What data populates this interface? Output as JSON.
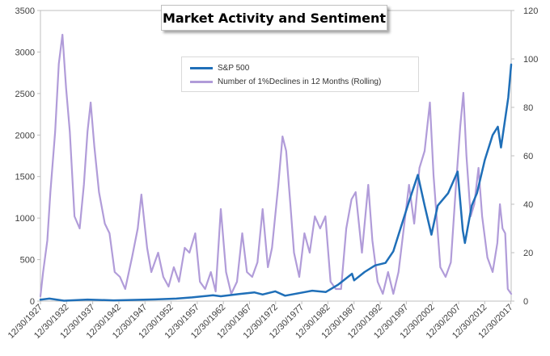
{
  "chart_data": {
    "type": "line",
    "title": "Market Activity and Sentiment",
    "x_tick_labels": [
      "12/30/1927",
      "12/30/1932",
      "12/30/1937",
      "12/30/1942",
      "12/30/1947",
      "12/30/1952",
      "12/30/1957",
      "12/30/1962",
      "12/30/1967",
      "12/30/1972",
      "12/30/1977",
      "12/30/1982",
      "12/30/1987",
      "12/30/1992",
      "12/30/1997",
      "12/30/2002",
      "12/30/2007",
      "12/30/2012",
      "12/30/2017"
    ],
    "y_left": {
      "min": 0,
      "max": 3500,
      "ticks": [
        "0",
        "500",
        "1000",
        "1500",
        "2000",
        "2500",
        "3000",
        "3500"
      ]
    },
    "y_right": {
      "min": 0,
      "max": 120,
      "ticks": [
        "0",
        "20",
        "40",
        "60",
        "80",
        "100",
        "120"
      ]
    },
    "gridlines": false,
    "legend_position": "top-center",
    "series": [
      {
        "name": "S&P 500",
        "axis": "left",
        "color": "#1f6fb8",
        "points": [
          [
            1927.99,
            17
          ],
          [
            1929.7,
            30
          ],
          [
            1932.5,
            5
          ],
          [
            1937,
            18
          ],
          [
            1942,
            9
          ],
          [
            1946,
            15
          ],
          [
            1950,
            20
          ],
          [
            1954,
            30
          ],
          [
            1957,
            45
          ],
          [
            1961,
            70
          ],
          [
            1962.5,
            58
          ],
          [
            1966,
            85
          ],
          [
            1968.9,
            105
          ],
          [
            1970.5,
            80
          ],
          [
            1972.9,
            118
          ],
          [
            1974.8,
            65
          ],
          [
            1980,
            125
          ],
          [
            1982.6,
            110
          ],
          [
            1985,
            200
          ],
          [
            1987.6,
            330
          ],
          [
            1988,
            250
          ],
          [
            1990,
            350
          ],
          [
            1992,
            430
          ],
          [
            1994,
            460
          ],
          [
            1995.5,
            600
          ],
          [
            1997,
            900
          ],
          [
            1998.5,
            1200
          ],
          [
            2000.2,
            1520
          ],
          [
            2001.5,
            1150
          ],
          [
            2002.8,
            800
          ],
          [
            2004,
            1150
          ],
          [
            2006,
            1300
          ],
          [
            2007.8,
            1560
          ],
          [
            2008.8,
            850
          ],
          [
            2009.2,
            700
          ],
          [
            2010.5,
            1150
          ],
          [
            2011.5,
            1300
          ],
          [
            2013,
            1700
          ],
          [
            2014.5,
            2000
          ],
          [
            2015.5,
            2100
          ],
          [
            2016.1,
            1850
          ],
          [
            2016.8,
            2150
          ],
          [
            2017.5,
            2450
          ],
          [
            2018.05,
            2850
          ]
        ]
      },
      {
        "name": "Number of 1%Declines in 12 Months (Rolling)",
        "axis": "right",
        "color": "#b19cd9",
        "points": [
          [
            1927.99,
            2
          ],
          [
            1928.5,
            12
          ],
          [
            1929.3,
            25
          ],
          [
            1929.9,
            45
          ],
          [
            1930.8,
            70
          ],
          [
            1931.5,
            98
          ],
          [
            1932.2,
            110
          ],
          [
            1932.9,
            88
          ],
          [
            1933.6,
            70
          ],
          [
            1934.5,
            35
          ],
          [
            1935.5,
            30
          ],
          [
            1936.3,
            48
          ],
          [
            1937.0,
            70
          ],
          [
            1937.6,
            82
          ],
          [
            1938.3,
            64
          ],
          [
            1939.2,
            45
          ],
          [
            1940.3,
            32
          ],
          [
            1941.2,
            28
          ],
          [
            1942.2,
            12
          ],
          [
            1943.2,
            10
          ],
          [
            1944.2,
            5
          ],
          [
            1945.5,
            18
          ],
          [
            1946.6,
            30
          ],
          [
            1947.3,
            44
          ],
          [
            1948.4,
            22
          ],
          [
            1949.2,
            12
          ],
          [
            1950.5,
            20
          ],
          [
            1951.5,
            10
          ],
          [
            1952.5,
            6
          ],
          [
            1953.5,
            14
          ],
          [
            1954.5,
            8
          ],
          [
            1955.6,
            22
          ],
          [
            1956.5,
            20
          ],
          [
            1957.6,
            28
          ],
          [
            1958.5,
            8
          ],
          [
            1959.5,
            5
          ],
          [
            1960.6,
            12
          ],
          [
            1961.5,
            4
          ],
          [
            1962.5,
            38
          ],
          [
            1963.5,
            12
          ],
          [
            1964.5,
            3
          ],
          [
            1965.6,
            8
          ],
          [
            1966.6,
            28
          ],
          [
            1967.5,
            12
          ],
          [
            1968.5,
            10
          ],
          [
            1969.5,
            16
          ],
          [
            1970.5,
            38
          ],
          [
            1971.5,
            14
          ],
          [
            1972.3,
            22
          ],
          [
            1973.5,
            48
          ],
          [
            1974.3,
            68
          ],
          [
            1975.0,
            62
          ],
          [
            1975.8,
            40
          ],
          [
            1976.5,
            20
          ],
          [
            1977.5,
            10
          ],
          [
            1978.5,
            28
          ],
          [
            1979.5,
            20
          ],
          [
            1980.5,
            35
          ],
          [
            1981.5,
            30
          ],
          [
            1982.5,
            35
          ],
          [
            1983.5,
            8
          ],
          [
            1984.5,
            5
          ],
          [
            1985.5,
            5
          ],
          [
            1986.5,
            30
          ],
          [
            1987.5,
            42
          ],
          [
            1988.3,
            45
          ],
          [
            1989.5,
            20
          ],
          [
            1990.7,
            48
          ],
          [
            1991.5,
            25
          ],
          [
            1992.5,
            8
          ],
          [
            1993.5,
            3
          ],
          [
            1994.5,
            12
          ],
          [
            1995.5,
            3
          ],
          [
            1996.5,
            12
          ],
          [
            1997.5,
            30
          ],
          [
            1998.5,
            48
          ],
          [
            1999.5,
            32
          ],
          [
            2000.5,
            55
          ],
          [
            2001.5,
            62
          ],
          [
            2002.5,
            82
          ],
          [
            2003.2,
            52
          ],
          [
            2004.5,
            14
          ],
          [
            2005.5,
            10
          ],
          [
            2006.5,
            16
          ],
          [
            2007.5,
            48
          ],
          [
            2008.3,
            72
          ],
          [
            2008.9,
            86
          ],
          [
            2009.5,
            60
          ],
          [
            2010.3,
            35
          ],
          [
            2011.0,
            40
          ],
          [
            2011.8,
            55
          ],
          [
            2012.5,
            35
          ],
          [
            2013.5,
            18
          ],
          [
            2014.5,
            12
          ],
          [
            2015.4,
            24
          ],
          [
            2015.9,
            40
          ],
          [
            2016.4,
            30
          ],
          [
            2016.9,
            28
          ],
          [
            2017.4,
            5
          ],
          [
            2018.05,
            3
          ]
        ]
      }
    ]
  }
}
